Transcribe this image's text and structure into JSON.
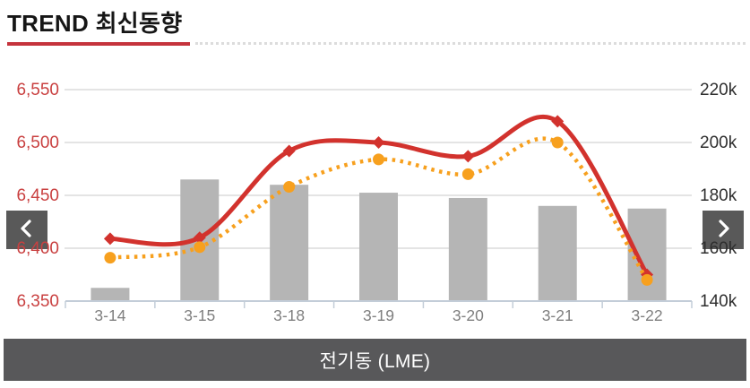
{
  "header": {
    "title": "TREND 최신동향",
    "underline_color": "#c5333c"
  },
  "nav": {
    "prev_icon": "chevron-left-icon",
    "next_icon": "chevron-right-icon",
    "button_color": "#595959",
    "arrow_color": "#ffffff"
  },
  "footer": {
    "label": "전기동 (LME)",
    "bar_color": "#58585a"
  },
  "chart_data": {
    "type": "combo-bar-line",
    "title": "전기동 (LME)",
    "categories": [
      "3-14",
      "3-15",
      "3-18",
      "3-19",
      "3-20",
      "3-21",
      "3-22"
    ],
    "series": [
      {
        "name": "volume-bars",
        "type": "bar",
        "axis": "right",
        "color": "#b5b5b5",
        "values": [
          145000,
          186000,
          184000,
          181000,
          179000,
          176000,
          175000
        ]
      },
      {
        "name": "price-line-solid",
        "type": "line",
        "style": "solid",
        "marker": "diamond",
        "axis": "left",
        "color": "#d2322d",
        "values": [
          6409,
          6410,
          6492,
          6500,
          6487,
          6520,
          6375
        ]
      },
      {
        "name": "price-line-dotted",
        "type": "line",
        "style": "dotted",
        "marker": "circle",
        "axis": "left",
        "color": "#f7a01e",
        "values": [
          6391,
          6401,
          6458,
          6484,
          6470,
          6500,
          6370
        ]
      }
    ],
    "left_axis": {
      "min": 6350,
      "max": 6550,
      "step": 50,
      "tick_labels": [
        "6,350",
        "6,400",
        "6,450",
        "6,500",
        "6,550"
      ],
      "label_color": "#c94040"
    },
    "right_axis": {
      "min": 140000,
      "max": 220000,
      "step": 20000,
      "tick_labels": [
        "140k",
        "160k",
        "180k",
        "200k",
        "220k"
      ],
      "label_color": "#2e2e2e"
    },
    "x_axis": {
      "label_color": "#7f7f7f",
      "line_color": "#c3cdd8"
    },
    "grid": {
      "show": true,
      "color": "#d4d4d4"
    },
    "legend": "none"
  }
}
